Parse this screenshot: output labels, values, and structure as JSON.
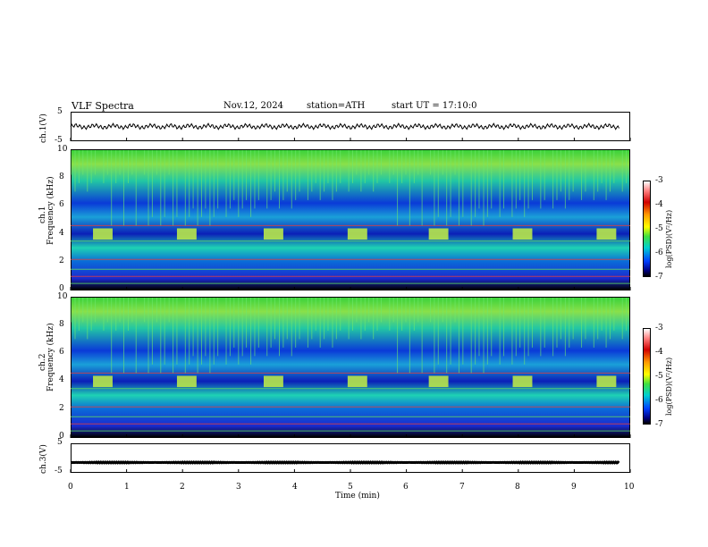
{
  "header": {
    "title": "VLF Spectra",
    "date": "Nov.12, 2024",
    "station": "station=ATH",
    "start": "start UT = 17:10:0"
  },
  "panels": {
    "ch1_wave": {
      "label": "ch.1(V)",
      "ticks": [
        "5",
        "-5"
      ]
    },
    "ch1_spec": {
      "label": "ch.1",
      "sublabel": "Frequency (kHz)",
      "ticks": [
        "10",
        "8",
        "6",
        "4",
        "2",
        "0"
      ]
    },
    "ch2_spec": {
      "label": "ch.2",
      "sublabel": "Frequency (kHz)",
      "ticks": [
        "10",
        "8",
        "6",
        "4",
        "2",
        "0"
      ]
    },
    "ch3_wave": {
      "label": "ch.3(V)",
      "ticks": [
        "5",
        "-5"
      ]
    }
  },
  "colorbar": {
    "label": "log(PSD)(V²/Hz)",
    "ticks": [
      "-3",
      "-4",
      "-5",
      "-6",
      "-7"
    ]
  },
  "colorbars": [
    {
      "label": "log(PSD)(V²/Hz)",
      "ticks": [
        "-3",
        "-4",
        "-5",
        "-6",
        "-7"
      ]
    },
    {
      "label": "log(PSD)(V²/Hz)",
      "ticks": [
        "-3",
        "-4",
        "-5",
        "-6",
        "-7"
      ]
    }
  ],
  "xaxis": {
    "label": "Time (min)",
    "ticks": [
      "0",
      "1",
      "2",
      "3",
      "4",
      "5",
      "6",
      "7",
      "8",
      "9",
      "10"
    ]
  },
  "chart_data": {
    "type": "heatmap",
    "title": "VLF Spectra",
    "xlabel": "Time (min)",
    "xlim": [
      0,
      10
    ],
    "ylim_frequency_khz": [
      0,
      10
    ],
    "ylim_voltage": [
      -5,
      5
    ],
    "colorbar_range": [
      -7,
      -3
    ],
    "series": [
      {
        "name": "ch.1(V)",
        "kind": "waveform",
        "mean_value": 0,
        "color": "#000000"
      },
      {
        "name": "ch.1",
        "kind": "spectrogram",
        "frequency_khz": [
          0,
          10
        ]
      },
      {
        "name": "ch.2",
        "kind": "spectrogram",
        "frequency_khz": [
          0,
          10
        ]
      },
      {
        "name": "ch.3(V)",
        "kind": "waveform",
        "mean_value": -1.5,
        "color": "#000000"
      }
    ],
    "transmitter_blocks": {
      "start_min": [
        0.4,
        1.9,
        3.45,
        4.95,
        6.4,
        7.9,
        9.4
      ],
      "end_min": [
        0.75,
        2.25,
        3.8,
        5.3,
        6.75,
        8.25,
        9.75
      ],
      "frequency_khz": [
        3.6,
        4.4
      ],
      "color": "#b8e84a"
    },
    "band_lines_khz": [
      0.5,
      1.0,
      1.5,
      2.2,
      3.5,
      4.6
    ]
  }
}
